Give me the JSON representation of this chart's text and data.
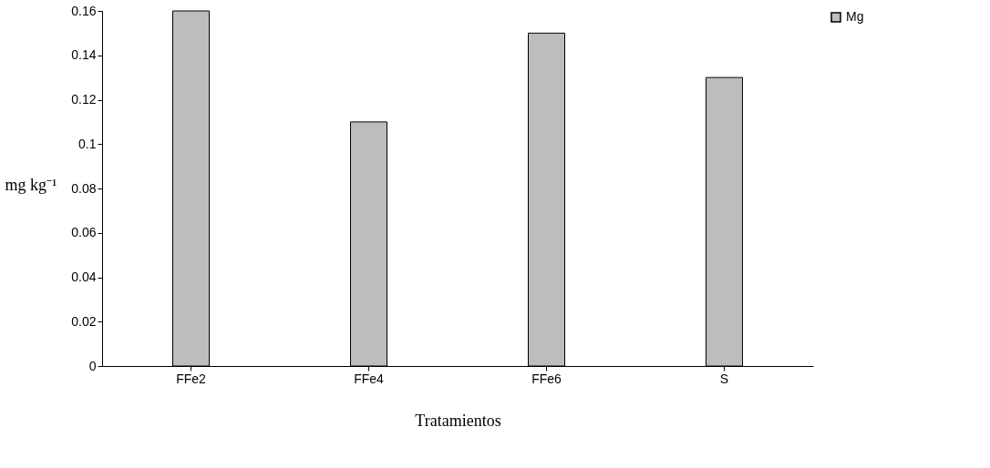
{
  "chart_data": {
    "type": "bar",
    "xlabel": "Tratamientos",
    "ylabel": "mg kg⁻¹",
    "categories": [
      "FFe2",
      "FFe4",
      "FFe6",
      "S"
    ],
    "series": [
      {
        "name": "Mg",
        "color": "#bdbdbd",
        "values": [
          0.16,
          0.11,
          0.15,
          0.13
        ]
      }
    ],
    "ylim": [
      0,
      0.16
    ],
    "yticks": [
      0,
      0.02,
      0.04,
      0.06,
      0.08,
      0.1,
      0.12,
      0.14,
      0.16
    ],
    "grid": false,
    "legend": "right"
  }
}
